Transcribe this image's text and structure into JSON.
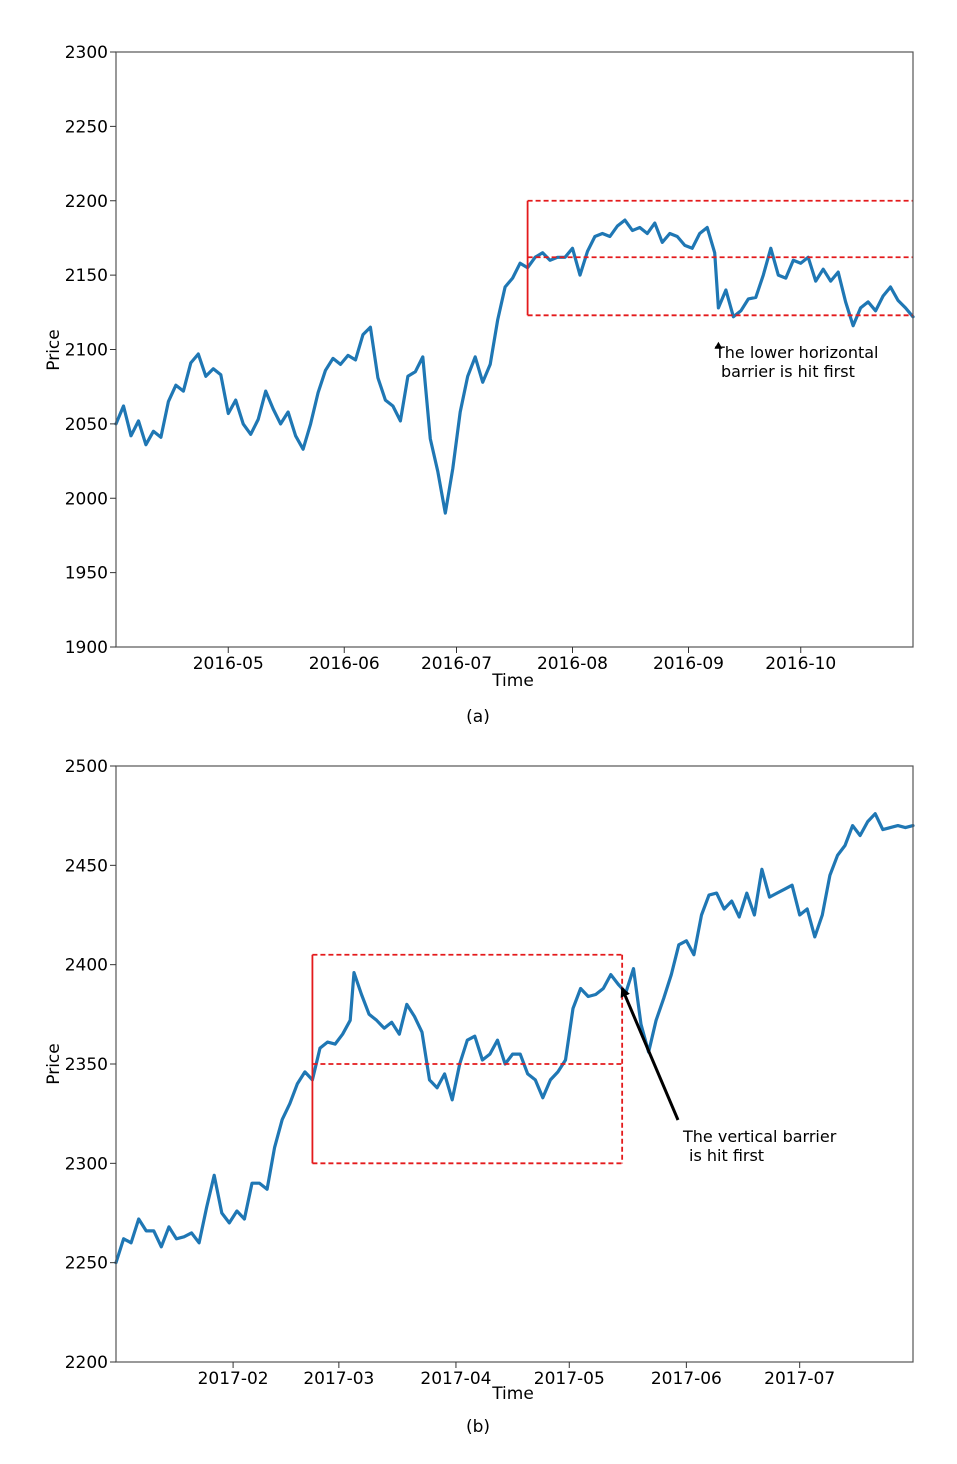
{
  "chart_data": [
    {
      "type": "line",
      "panel_label": "(a)",
      "xlabel": "Time",
      "ylabel": "Price",
      "ylim": [
        1900,
        2300
      ],
      "yticks": [
        1900,
        1950,
        2000,
        2050,
        2100,
        2150,
        2200,
        2250,
        2300
      ],
      "xlim": [
        "2016-04-01",
        "2016-10-31"
      ],
      "xticks": [
        "2016-05",
        "2016-06",
        "2016-07",
        "2016-08",
        "2016-09",
        "2016-10"
      ],
      "grid": false,
      "series": [
        {
          "color": "#1f77b4",
          "points": [
            [
              "2016-04-01",
              2050
            ],
            [
              "2016-04-03",
              2062
            ],
            [
              "2016-04-05",
              2042
            ],
            [
              "2016-04-07",
              2052
            ],
            [
              "2016-04-09",
              2036
            ],
            [
              "2016-04-11",
              2045
            ],
            [
              "2016-04-13",
              2041
            ],
            [
              "2016-04-15",
              2065
            ],
            [
              "2016-04-17",
              2076
            ],
            [
              "2016-04-19",
              2072
            ],
            [
              "2016-04-21",
              2091
            ],
            [
              "2016-04-23",
              2097
            ],
            [
              "2016-04-25",
              2082
            ],
            [
              "2016-04-27",
              2087
            ],
            [
              "2016-04-29",
              2083
            ],
            [
              "2016-05-01",
              2057
            ],
            [
              "2016-05-03",
              2066
            ],
            [
              "2016-05-05",
              2050
            ],
            [
              "2016-05-07",
              2043
            ],
            [
              "2016-05-09",
              2053
            ],
            [
              "2016-05-11",
              2072
            ],
            [
              "2016-05-13",
              2060
            ],
            [
              "2016-05-15",
              2050
            ],
            [
              "2016-05-17",
              2058
            ],
            [
              "2016-05-19",
              2042
            ],
            [
              "2016-05-21",
              2033
            ],
            [
              "2016-05-23",
              2050
            ],
            [
              "2016-05-25",
              2071
            ],
            [
              "2016-05-27",
              2086
            ],
            [
              "2016-05-29",
              2094
            ],
            [
              "2016-05-31",
              2090
            ],
            [
              "2016-06-02",
              2096
            ],
            [
              "2016-06-04",
              2093
            ],
            [
              "2016-06-06",
              2110
            ],
            [
              "2016-06-08",
              2115
            ],
            [
              "2016-06-10",
              2081
            ],
            [
              "2016-06-12",
              2066
            ],
            [
              "2016-06-14",
              2062
            ],
            [
              "2016-06-16",
              2052
            ],
            [
              "2016-06-18",
              2082
            ],
            [
              "2016-06-20",
              2085
            ],
            [
              "2016-06-22",
              2095
            ],
            [
              "2016-06-24",
              2040
            ],
            [
              "2016-06-26",
              2018
            ],
            [
              "2016-06-28",
              1990
            ],
            [
              "2016-06-30",
              2020
            ],
            [
              "2016-07-02",
              2058
            ],
            [
              "2016-07-04",
              2082
            ],
            [
              "2016-07-06",
              2095
            ],
            [
              "2016-07-08",
              2078
            ],
            [
              "2016-07-10",
              2090
            ],
            [
              "2016-07-12",
              2120
            ],
            [
              "2016-07-14",
              2142
            ],
            [
              "2016-07-16",
              2148
            ],
            [
              "2016-07-18",
              2158
            ],
            [
              "2016-07-20",
              2155
            ],
            [
              "2016-07-22",
              2162
            ],
            [
              "2016-07-24",
              2165
            ],
            [
              "2016-07-26",
              2160
            ],
            [
              "2016-07-28",
              2162
            ],
            [
              "2016-07-30",
              2162
            ],
            [
              "2016-08-01",
              2168
            ],
            [
              "2016-08-03",
              2150
            ],
            [
              "2016-08-05",
              2166
            ],
            [
              "2016-08-07",
              2176
            ],
            [
              "2016-08-09",
              2178
            ],
            [
              "2016-08-11",
              2176
            ],
            [
              "2016-08-13",
              2183
            ],
            [
              "2016-08-15",
              2187
            ],
            [
              "2016-08-17",
              2180
            ],
            [
              "2016-08-19",
              2182
            ],
            [
              "2016-08-21",
              2178
            ],
            [
              "2016-08-23",
              2185
            ],
            [
              "2016-08-25",
              2172
            ],
            [
              "2016-08-27",
              2178
            ],
            [
              "2016-08-29",
              2176
            ],
            [
              "2016-08-31",
              2170
            ],
            [
              "2016-09-02",
              2168
            ],
            [
              "2016-09-04",
              2178
            ],
            [
              "2016-09-06",
              2182
            ],
            [
              "2016-09-08",
              2165
            ],
            [
              "2016-09-09",
              2128
            ],
            [
              "2016-09-11",
              2140
            ],
            [
              "2016-09-13",
              2122
            ],
            [
              "2016-09-15",
              2126
            ],
            [
              "2016-09-17",
              2134
            ],
            [
              "2016-09-19",
              2135
            ],
            [
              "2016-09-21",
              2150
            ],
            [
              "2016-09-23",
              2168
            ],
            [
              "2016-09-25",
              2150
            ],
            [
              "2016-09-27",
              2148
            ],
            [
              "2016-09-29",
              2160
            ],
            [
              "2016-10-01",
              2158
            ],
            [
              "2016-10-03",
              2162
            ],
            [
              "2016-10-05",
              2146
            ],
            [
              "2016-10-07",
              2154
            ],
            [
              "2016-10-09",
              2146
            ],
            [
              "2016-10-11",
              2152
            ],
            [
              "2016-10-13",
              2132
            ],
            [
              "2016-10-15",
              2116
            ],
            [
              "2016-10-17",
              2128
            ],
            [
              "2016-10-19",
              2132
            ],
            [
              "2016-10-21",
              2126
            ],
            [
              "2016-10-23",
              2136
            ],
            [
              "2016-10-25",
              2142
            ],
            [
              "2016-10-27",
              2133
            ],
            [
              "2016-10-29",
              2128
            ],
            [
              "2016-10-31",
              2122
            ]
          ]
        }
      ],
      "barriers": {
        "color": "#e41a1c",
        "start": "2016-07-20",
        "end": "2016-10-31",
        "upper": 2200,
        "middle": 2162,
        "lower": 2123
      },
      "annotation": {
        "text_lines": [
          "The lower horizontal",
          "barrier is hit first"
        ],
        "arrow_tip": [
          "2016-09-09",
          2118
        ]
      }
    },
    {
      "type": "line",
      "panel_label": "(b)",
      "xlabel": "Time",
      "ylabel": "Price",
      "ylim": [
        2200,
        2500
      ],
      "yticks": [
        2200,
        2250,
        2300,
        2350,
        2400,
        2450,
        2500
      ],
      "xlim": [
        "2017-01-01",
        "2017-07-31"
      ],
      "xticks": [
        "2017-02",
        "2017-03",
        "2017-04",
        "2017-05",
        "2017-06",
        "2017-07"
      ],
      "grid": false,
      "series": [
        {
          "color": "#1f77b4",
          "points": [
            [
              "2017-01-01",
              2250
            ],
            [
              "2017-01-03",
              2262
            ],
            [
              "2017-01-05",
              2260
            ],
            [
              "2017-01-07",
              2272
            ],
            [
              "2017-01-09",
              2266
            ],
            [
              "2017-01-11",
              2266
            ],
            [
              "2017-01-13",
              2258
            ],
            [
              "2017-01-15",
              2268
            ],
            [
              "2017-01-17",
              2262
            ],
            [
              "2017-01-19",
              2263
            ],
            [
              "2017-01-21",
              2265
            ],
            [
              "2017-01-23",
              2260
            ],
            [
              "2017-01-25",
              2278
            ],
            [
              "2017-01-27",
              2294
            ],
            [
              "2017-01-29",
              2275
            ],
            [
              "2017-01-31",
              2270
            ],
            [
              "2017-02-02",
              2276
            ],
            [
              "2017-02-04",
              2272
            ],
            [
              "2017-02-06",
              2290
            ],
            [
              "2017-02-08",
              2290
            ],
            [
              "2017-02-10",
              2287
            ],
            [
              "2017-02-12",
              2308
            ],
            [
              "2017-02-14",
              2322
            ],
            [
              "2017-02-16",
              2330
            ],
            [
              "2017-02-18",
              2340
            ],
            [
              "2017-02-20",
              2346
            ],
            [
              "2017-02-22",
              2342
            ],
            [
              "2017-02-24",
              2358
            ],
            [
              "2017-02-26",
              2361
            ],
            [
              "2017-02-28",
              2360
            ],
            [
              "2017-03-02",
              2365
            ],
            [
              "2017-03-04",
              2372
            ],
            [
              "2017-03-05",
              2396
            ],
            [
              "2017-03-07",
              2385
            ],
            [
              "2017-03-09",
              2375
            ],
            [
              "2017-03-11",
              2372
            ],
            [
              "2017-03-13",
              2368
            ],
            [
              "2017-03-15",
              2371
            ],
            [
              "2017-03-17",
              2365
            ],
            [
              "2017-03-19",
              2380
            ],
            [
              "2017-03-21",
              2374
            ],
            [
              "2017-03-23",
              2366
            ],
            [
              "2017-03-25",
              2342
            ],
            [
              "2017-03-27",
              2338
            ],
            [
              "2017-03-29",
              2345
            ],
            [
              "2017-03-31",
              2332
            ],
            [
              "2017-04-02",
              2350
            ],
            [
              "2017-04-04",
              2362
            ],
            [
              "2017-04-06",
              2364
            ],
            [
              "2017-04-08",
              2352
            ],
            [
              "2017-04-10",
              2355
            ],
            [
              "2017-04-12",
              2362
            ],
            [
              "2017-04-14",
              2350
            ],
            [
              "2017-04-16",
              2355
            ],
            [
              "2017-04-18",
              2355
            ],
            [
              "2017-04-20",
              2345
            ],
            [
              "2017-04-22",
              2342
            ],
            [
              "2017-04-24",
              2333
            ],
            [
              "2017-04-26",
              2342
            ],
            [
              "2017-04-28",
              2346
            ],
            [
              "2017-04-30",
              2352
            ],
            [
              "2017-05-02",
              2378
            ],
            [
              "2017-05-04",
              2388
            ],
            [
              "2017-05-06",
              2384
            ],
            [
              "2017-05-08",
              2385
            ],
            [
              "2017-05-10",
              2388
            ],
            [
              "2017-05-12",
              2395
            ],
            [
              "2017-05-14",
              2390
            ],
            [
              "2017-05-16",
              2386
            ],
            [
              "2017-05-18",
              2398
            ],
            [
              "2017-05-20",
              2370
            ],
            [
              "2017-05-22",
              2356
            ],
            [
              "2017-05-24",
              2372
            ],
            [
              "2017-05-26",
              2383
            ],
            [
              "2017-05-28",
              2395
            ],
            [
              "2017-05-30",
              2410
            ],
            [
              "2017-06-01",
              2412
            ],
            [
              "2017-06-03",
              2405
            ],
            [
              "2017-06-05",
              2425
            ],
            [
              "2017-06-07",
              2435
            ],
            [
              "2017-06-09",
              2436
            ],
            [
              "2017-06-11",
              2428
            ],
            [
              "2017-06-13",
              2432
            ],
            [
              "2017-06-15",
              2424
            ],
            [
              "2017-06-17",
              2436
            ],
            [
              "2017-06-19",
              2425
            ],
            [
              "2017-06-21",
              2448
            ],
            [
              "2017-06-23",
              2434
            ],
            [
              "2017-06-25",
              2436
            ],
            [
              "2017-06-27",
              2438
            ],
            [
              "2017-06-29",
              2440
            ],
            [
              "2017-07-01",
              2425
            ],
            [
              "2017-07-03",
              2428
            ],
            [
              "2017-07-05",
              2414
            ],
            [
              "2017-07-07",
              2425
            ],
            [
              "2017-07-09",
              2445
            ],
            [
              "2017-07-11",
              2455
            ],
            [
              "2017-07-13",
              2460
            ],
            [
              "2017-07-15",
              2470
            ],
            [
              "2017-07-17",
              2465
            ],
            [
              "2017-07-19",
              2472
            ],
            [
              "2017-07-21",
              2476
            ],
            [
              "2017-07-23",
              2468
            ],
            [
              "2017-07-25",
              2469
            ],
            [
              "2017-07-27",
              2470
            ],
            [
              "2017-07-29",
              2469
            ],
            [
              "2017-07-31",
              2470
            ]
          ]
        }
      ],
      "barriers": {
        "color": "#e41a1c",
        "start": "2017-02-22",
        "end": "2017-05-15",
        "upper": 2405,
        "middle": 2350,
        "lower": 2300
      },
      "annotation": {
        "text_lines": [
          "The vertical barrier",
          "is hit first"
        ],
        "arrow_tip": [
          "2017-05-15",
          2388
        ]
      }
    }
  ]
}
